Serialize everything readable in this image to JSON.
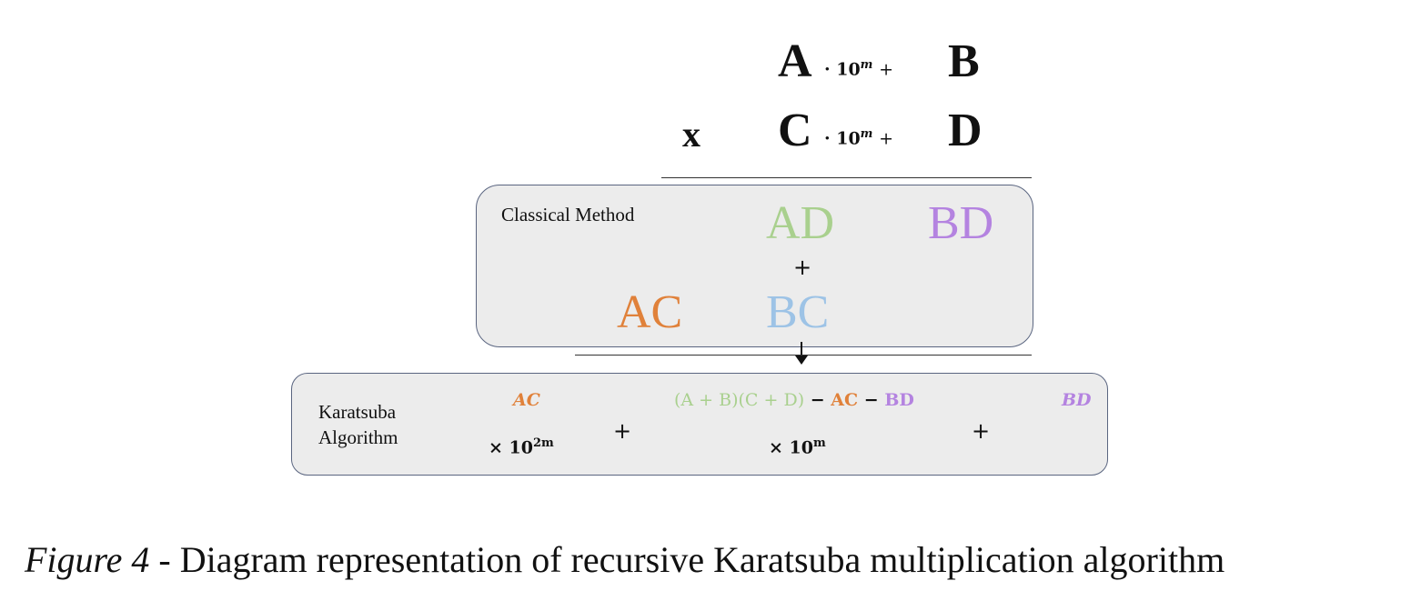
{
  "multiplication": {
    "row1": {
      "high": "A",
      "power": "· 10",
      "exp": "m",
      "plus": "+",
      "low": "B"
    },
    "row2": {
      "times": "x",
      "high": "C",
      "power": "· 10",
      "exp": "m",
      "plus": "+",
      "low": "D"
    }
  },
  "classical": {
    "label": "Classical Method",
    "terms": {
      "ad": "AD",
      "bd": "BD",
      "ac": "AC",
      "bc": "BC"
    },
    "plus": "+"
  },
  "karatsuba": {
    "label_line1": "Karatsuba",
    "label_line2": "Algorithm",
    "ac": "AC",
    "ac_multiplier": "× 10",
    "ac_exp": "2m",
    "plus1": "+",
    "middle": {
      "sum_part": "(A + B)(C + D)",
      "minus1": "−",
      "ac": "AC",
      "minus2": "−",
      "bd": "BD"
    },
    "middle_multiplier": "× 10",
    "middle_exp": "m",
    "plus2": "+",
    "bd": "BD"
  },
  "caption": {
    "figure": "Figure 4",
    "text": " - Diagram representation of recursive Karatsuba multiplication algorithm"
  },
  "colors": {
    "ac": "#e0813a",
    "ad": "#a9d08e",
    "bc": "#9dc3e6",
    "bd": "#b483e0",
    "sum": "#a9d08e"
  }
}
